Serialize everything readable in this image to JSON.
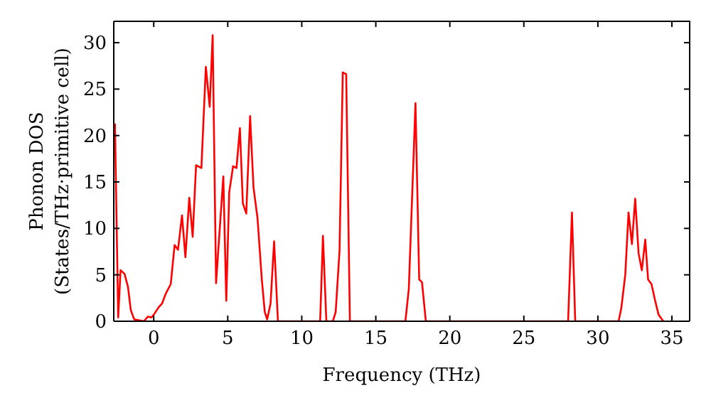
{
  "chart_data": {
    "type": "line",
    "xlabel": "Frequency (THz)",
    "ylabel": "Phonon DOS\n(States/THz·primitive cell)",
    "xlim": [
      -2.7,
      36.2
    ],
    "ylim": [
      0,
      32.3
    ],
    "xticks": [
      0,
      5,
      10,
      15,
      20,
      25,
      30,
      35
    ],
    "yticks": [
      0,
      5,
      10,
      15,
      20,
      25,
      30
    ],
    "marker": "none",
    "line_style": "solid",
    "series": [
      {
        "color": "#ff0000",
        "x": [
          -2.62,
          -2.4,
          -2.24,
          -1.97,
          -1.74,
          -1.55,
          -1.32,
          -0.66,
          -0.39,
          -0.16,
          0,
          0.33,
          0.56,
          0.82,
          1.15,
          1.41,
          1.64,
          1.91,
          2.14,
          2.4,
          2.63,
          2.86,
          3.22,
          3.52,
          3.78,
          3.98,
          4.21,
          4.7,
          4.9,
          5.1,
          5.36,
          5.59,
          5.82,
          6.02,
          6.25,
          6.51,
          6.74,
          7.01,
          7.3,
          7.5,
          7.66,
          7.89,
          8.13,
          8.39,
          11.24,
          11.43,
          11.66,
          12.1,
          12.29,
          12.55,
          12.77,
          13.0,
          13.25,
          17.0,
          17.23,
          17.68,
          17.93,
          18.12,
          18.38,
          27.99,
          28.25,
          28.47,
          31.4,
          31.59,
          31.85,
          32.07,
          32.3,
          32.52,
          32.75,
          32.97,
          33.2,
          33.39,
          33.62,
          33.87,
          34.1,
          34.42
        ],
        "values": [
          21.3,
          0.4,
          5.5,
          5.1,
          3.7,
          1.2,
          0.2,
          0,
          0.5,
          0.4,
          0.7,
          1.5,
          1.9,
          3.0,
          4.0,
          8.2,
          7.7,
          11.4,
          6.9,
          13.3,
          9.1,
          16.8,
          16.5,
          27.4,
          23.1,
          30.8,
          4.1,
          15.6,
          2.2,
          13.9,
          16.7,
          16.5,
          20.8,
          12.7,
          11.6,
          22.1,
          14.4,
          11.1,
          4.5,
          1.0,
          0.2,
          1.9,
          8.6,
          0,
          0,
          9.2,
          0,
          0,
          1.0,
          7.6,
          26.8,
          26.6,
          0,
          0,
          3.5,
          23.5,
          4.5,
          4.2,
          0,
          0,
          11.7,
          0,
          0,
          1.5,
          5.0,
          11.7,
          8.3,
          13.2,
          7.3,
          5.5,
          8.8,
          4.5,
          4.0,
          2.2,
          0.7,
          0
        ]
      }
    ]
  }
}
